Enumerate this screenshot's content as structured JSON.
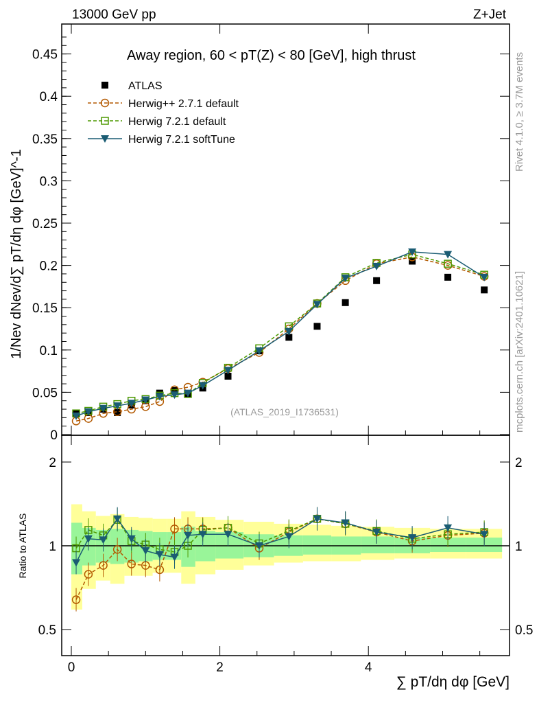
{
  "header": {
    "left": "13000 GeV pp",
    "right": "Z+Jet"
  },
  "side": {
    "rivet": "Rivet 4.1.0, ≥ 3.7M events",
    "source": "mcplots.cern.ch [arXiv:2401.10621]"
  },
  "chart_data": {
    "type": "scatter",
    "title": "Away region, 60 < pT(Z) < 80 [GeV], high thrust",
    "watermark": "(ATLAS_2019_I1736531)",
    "xlabel": "∑ pT/dη dφ [GeV]",
    "ylabel": "1/Nev dNev/d∑ pT/dη dφ [GeV]^-1",
    "ratio_ylabel": "Ratio to ATLAS",
    "xlim": [
      -0.1,
      5.9
    ],
    "ylim": [
      0,
      0.485
    ],
    "ratio_ylim": [
      0.4,
      2.5
    ],
    "x_ticks": [
      "0",
      "2",
      "4"
    ],
    "y_ticks": [
      "0",
      "0.05",
      "0.1",
      "0.15",
      "0.2",
      "0.25",
      "0.3",
      "0.35",
      "0.4",
      "0.45"
    ],
    "ratio_ticks": [
      "0.5",
      "1",
      "2"
    ],
    "x": [
      0.065,
      0.23,
      0.43,
      0.62,
      0.81,
      1.0,
      1.19,
      1.39,
      1.57,
      1.77,
      2.11,
      2.53,
      2.93,
      3.31,
      3.69,
      4.11,
      4.59,
      5.07,
      5.56
    ],
    "series": [
      {
        "name": "ATLAS",
        "color": "#000000",
        "marker": "square-filled",
        "values": [
          0.025,
          0.026,
          0.03,
          0.026,
          0.035,
          0.04,
          0.049,
          0.052,
          0.048,
          0.055,
          0.069,
          0.099,
          0.115,
          0.128,
          0.156,
          0.182,
          0.205,
          0.186,
          0.171
        ]
      },
      {
        "name": "Herwig++ 2.7.1 default",
        "color": "#b35900",
        "marker": "circle",
        "dash": true,
        "values": [
          0.016,
          0.019,
          0.025,
          0.027,
          0.03,
          0.033,
          0.039,
          0.053,
          0.056,
          0.062,
          0.078,
          0.097,
          0.125,
          0.155,
          0.182,
          0.202,
          0.21,
          0.2,
          0.187
        ],
        "ratio": [
          0.64,
          0.79,
          0.85,
          0.97,
          0.86,
          0.85,
          0.82,
          1.15,
          1.15,
          1.15,
          1.16,
          0.98,
          1.12,
          1.25,
          1.2,
          1.12,
          1.04,
          1.09,
          1.11
        ]
      },
      {
        "name": "Herwig 7.2.1 default",
        "color": "#4d9900",
        "marker": "square",
        "dash": true,
        "values": [
          0.025,
          0.028,
          0.033,
          0.036,
          0.04,
          0.042,
          0.046,
          0.049,
          0.048,
          0.061,
          0.079,
          0.102,
          0.128,
          0.155,
          0.186,
          0.203,
          0.213,
          0.202,
          0.189
        ],
        "ratio": [
          0.98,
          1.14,
          1.09,
          1.24,
          1.04,
          1.01,
          0.97,
          0.95,
          1.0,
          1.14,
          1.16,
          1.02,
          1.13,
          1.25,
          1.2,
          1.13,
          1.06,
          1.1,
          1.12
        ]
      },
      {
        "name": "Herwig 7.2.1 softTune",
        "color": "#1a5c73",
        "marker": "triangle-down",
        "dash": false,
        "values": [
          0.022,
          0.027,
          0.031,
          0.034,
          0.037,
          0.041,
          0.045,
          0.047,
          0.049,
          0.058,
          0.076,
          0.099,
          0.122,
          0.154,
          0.185,
          0.199,
          0.216,
          0.213,
          0.186
        ],
        "ratio": [
          0.87,
          1.06,
          1.05,
          1.25,
          1.06,
          0.96,
          0.93,
          0.91,
          1.09,
          1.1,
          1.1,
          1.0,
          1.08,
          1.25,
          1.21,
          1.12,
          1.07,
          1.16,
          1.1
        ]
      }
    ],
    "bands": {
      "yellow_hi": [
        1.41,
        1.33,
        1.28,
        1.3,
        1.27,
        1.26,
        1.25,
        1.25,
        1.33,
        1.27,
        1.24,
        1.22,
        1.2,
        1.19,
        1.18,
        1.17,
        1.16,
        1.15,
        1.15
      ],
      "yellow_lo": [
        0.59,
        0.7,
        0.75,
        0.73,
        0.78,
        0.78,
        0.8,
        0.8,
        0.73,
        0.79,
        0.82,
        0.85,
        0.87,
        0.88,
        0.88,
        0.89,
        0.9,
        0.9,
        0.9
      ],
      "green_hi": [
        1.21,
        1.16,
        1.14,
        1.15,
        1.14,
        1.13,
        1.12,
        1.12,
        1.17,
        1.13,
        1.12,
        1.1,
        1.09,
        1.09,
        1.08,
        1.08,
        1.07,
        1.07,
        1.07
      ],
      "green_lo": [
        0.79,
        0.85,
        0.87,
        0.86,
        0.87,
        0.88,
        0.89,
        0.89,
        0.84,
        0.88,
        0.9,
        0.91,
        0.92,
        0.93,
        0.93,
        0.94,
        0.94,
        0.95,
        0.95
      ]
    }
  }
}
